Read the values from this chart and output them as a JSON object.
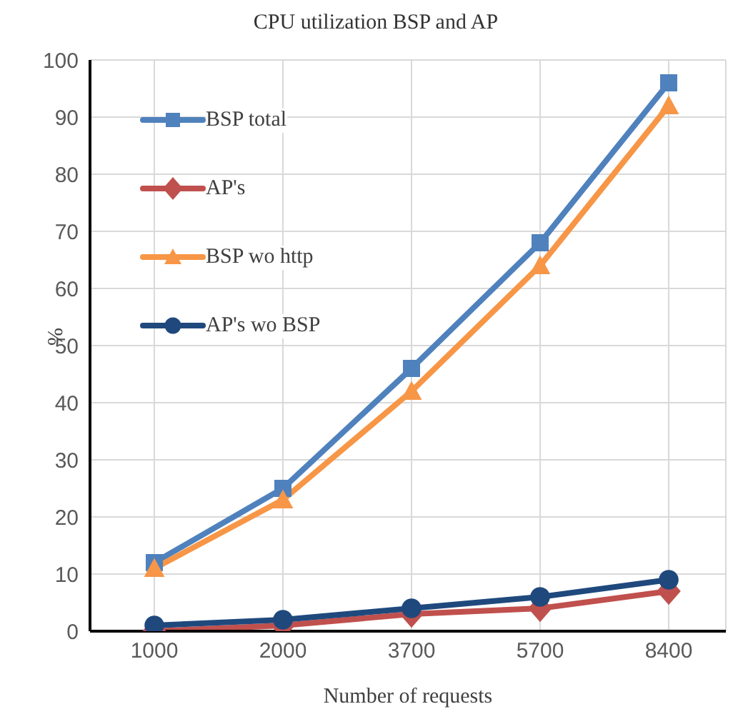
{
  "chart_data": {
    "type": "line",
    "title": "CPU utilization BSP and AP",
    "xlabel": "Number of requests",
    "ylabel": "%",
    "categories": [
      "1000",
      "2000",
      "3700",
      "5700",
      "8400"
    ],
    "series": [
      {
        "name": "BSP total",
        "color": "#4f81bd",
        "marker": "square",
        "values": [
          12,
          25,
          46,
          68,
          96
        ]
      },
      {
        "name": "AP's",
        "color": "#c0504d",
        "marker": "diamond",
        "values": [
          0,
          1,
          3,
          4,
          7
        ]
      },
      {
        "name": "BSP wo http",
        "color": "#f79646",
        "marker": "triangle",
        "values": [
          11,
          23,
          42,
          64,
          92
        ]
      },
      {
        "name": "AP's wo BSP",
        "color": "#1f497d",
        "marker": "circle",
        "values": [
          1,
          2,
          4,
          6,
          9
        ]
      }
    ],
    "ylim": [
      0,
      100
    ],
    "yticks": [
      0,
      10,
      20,
      30,
      40,
      50,
      60,
      70,
      80,
      90,
      100
    ],
    "grid": true,
    "legend": "top left"
  }
}
